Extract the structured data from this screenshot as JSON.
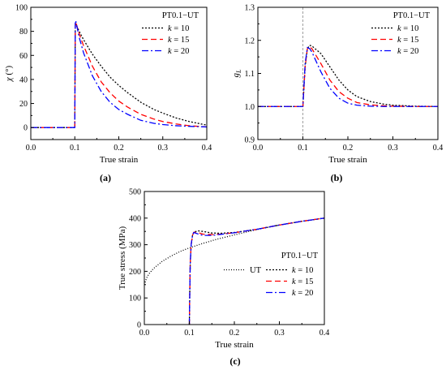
{
  "panel_labels": [
    "(a)",
    "(b)",
    "(c)"
  ],
  "styles": {
    "k = 10": {
      "color": "#000000",
      "dash": "2,2"
    },
    "k = 15": {
      "color": "#ff0000",
      "dash": "7,4"
    },
    "k = 20": {
      "color": "#0000ff",
      "dash": "8,3,2,3"
    },
    "UT": {
      "color": "#000000",
      "dash": "1,2"
    }
  },
  "chart_data": [
    {
      "type": "line",
      "panel": "(a)",
      "ylabel_main": "χ",
      "ylabel_unit": " (°)",
      "xlabel": "True strain",
      "xlim": [
        0.0,
        0.4
      ],
      "ylim": [
        -10,
        100
      ],
      "xticks": [
        0.0,
        0.1,
        0.2,
        0.3,
        0.4
      ],
      "yticks": [
        0,
        20,
        40,
        60,
        80,
        100
      ],
      "legend_title": "PT0.1−UT",
      "legend_position": "top-right",
      "series": [
        {
          "name": "k = 10",
          "x": [
            0,
            0.1,
            0.101,
            0.102,
            0.11,
            0.12,
            0.14,
            0.16,
            0.18,
            0.2,
            0.22,
            0.25,
            0.28,
            0.3,
            0.33,
            0.36,
            0.4
          ],
          "y": [
            0,
            0,
            84,
            86,
            80,
            73,
            61,
            51,
            42,
            35,
            29,
            21,
            15,
            12,
            8,
            5,
            2
          ]
        },
        {
          "name": "k = 15",
          "x": [
            0,
            0.1,
            0.101,
            0.102,
            0.11,
            0.12,
            0.14,
            0.16,
            0.18,
            0.2,
            0.22,
            0.25,
            0.28,
            0.3,
            0.33,
            0.36,
            0.4
          ],
          "y": [
            0,
            0,
            85,
            88,
            78,
            68,
            51,
            38,
            29,
            22,
            17,
            11,
            7,
            5,
            3,
            1.5,
            0.5
          ]
        },
        {
          "name": "k = 20",
          "x": [
            0,
            0.1,
            0.101,
            0.102,
            0.11,
            0.12,
            0.14,
            0.16,
            0.18,
            0.2,
            0.22,
            0.25,
            0.28,
            0.3,
            0.33,
            0.36,
            0.4
          ],
          "y": [
            0,
            0,
            87,
            89,
            75,
            62,
            43,
            30,
            21,
            15,
            11,
            6,
            3.5,
            2.5,
            1.5,
            1,
            0.5
          ]
        }
      ]
    },
    {
      "type": "line",
      "panel": "(b)",
      "ylabel_main": "g",
      "ylabel_sub": "L",
      "xlabel": "True strain",
      "xlim": [
        0.0,
        0.4
      ],
      "ylim": [
        0.9,
        1.3
      ],
      "xticks": [
        0.0,
        0.1,
        0.2,
        0.3,
        0.4
      ],
      "yticks": [
        0.9,
        1.0,
        1.1,
        1.2,
        1.3
      ],
      "vline_x": 0.1,
      "legend_title": "PT0.1−UT",
      "legend_position": "top-right",
      "series": [
        {
          "name": "k = 10",
          "x": [
            0,
            0.1,
            0.105,
            0.11,
            0.115,
            0.12,
            0.14,
            0.16,
            0.18,
            0.2,
            0.22,
            0.25,
            0.28,
            0.3,
            0.35,
            0.4
          ],
          "y": [
            1.0,
            1.0,
            1.12,
            1.175,
            1.185,
            1.183,
            1.16,
            1.12,
            1.08,
            1.05,
            1.03,
            1.015,
            1.007,
            1.004,
            1.001,
            1.0
          ]
        },
        {
          "name": "k = 15",
          "x": [
            0,
            0.1,
            0.105,
            0.11,
            0.115,
            0.12,
            0.14,
            0.16,
            0.18,
            0.2,
            0.22,
            0.25,
            0.28,
            0.3,
            0.35,
            0.4
          ],
          "y": [
            1.0,
            1.0,
            1.12,
            1.175,
            1.18,
            1.175,
            1.13,
            1.08,
            1.045,
            1.025,
            1.012,
            1.005,
            1.002,
            1.001,
            1.0,
            1.0
          ]
        },
        {
          "name": "k = 20",
          "x": [
            0,
            0.1,
            0.105,
            0.11,
            0.115,
            0.12,
            0.14,
            0.16,
            0.18,
            0.2,
            0.22,
            0.25,
            0.28,
            0.3,
            0.35,
            0.4
          ],
          "y": [
            1.0,
            1.0,
            1.13,
            1.178,
            1.175,
            1.165,
            1.105,
            1.055,
            1.025,
            1.01,
            1.004,
            1.001,
            1.0,
            1.0,
            1.0,
            1.0
          ]
        }
      ]
    },
    {
      "type": "line",
      "panel": "(c)",
      "ylabel": "True stress (MPa)",
      "xlabel": "True strain",
      "xlim": [
        0.0,
        0.4
      ],
      "ylim": [
        0,
        500
      ],
      "xticks": [
        0.0,
        0.1,
        0.2,
        0.3,
        0.4
      ],
      "yticks": [
        0,
        100,
        200,
        300,
        400,
        500
      ],
      "legend_title": "PT0.1−UT",
      "legend_position": "bottom-right",
      "series": [
        {
          "name": "UT",
          "x": [
            0,
            0.005,
            0.01,
            0.02,
            0.04,
            0.06,
            0.08,
            0.1,
            0.13,
            0.16,
            0.2,
            0.25,
            0.3,
            0.35,
            0.4
          ],
          "y": [
            150,
            175,
            190,
            210,
            238,
            258,
            275,
            288,
            305,
            320,
            337,
            357,
            374,
            388,
            400
          ]
        },
        {
          "name": "k = 10",
          "x": [
            0.1,
            0.101,
            0.102,
            0.104,
            0.107,
            0.11,
            0.12,
            0.13,
            0.15,
            0.17,
            0.2,
            0.25,
            0.3,
            0.35,
            0.4
          ],
          "y": [
            0,
            130,
            230,
            300,
            335,
            348,
            352,
            350,
            344,
            343,
            346,
            358,
            374,
            388,
            400
          ]
        },
        {
          "name": "k = 15",
          "x": [
            0.1,
            0.101,
            0.102,
            0.104,
            0.107,
            0.11,
            0.12,
            0.13,
            0.15,
            0.17,
            0.2,
            0.25,
            0.3,
            0.35,
            0.4
          ],
          "y": [
            0,
            130,
            230,
            300,
            335,
            347,
            345,
            340,
            338,
            340,
            345,
            358,
            374,
            388,
            400
          ]
        },
        {
          "name": "k = 20",
          "x": [
            0.1,
            0.101,
            0.102,
            0.104,
            0.107,
            0.11,
            0.12,
            0.13,
            0.15,
            0.17,
            0.2,
            0.25,
            0.3,
            0.35,
            0.4
          ],
          "y": [
            0,
            130,
            230,
            300,
            335,
            346,
            340,
            335,
            335,
            339,
            345,
            358,
            374,
            388,
            400
          ]
        }
      ]
    }
  ]
}
